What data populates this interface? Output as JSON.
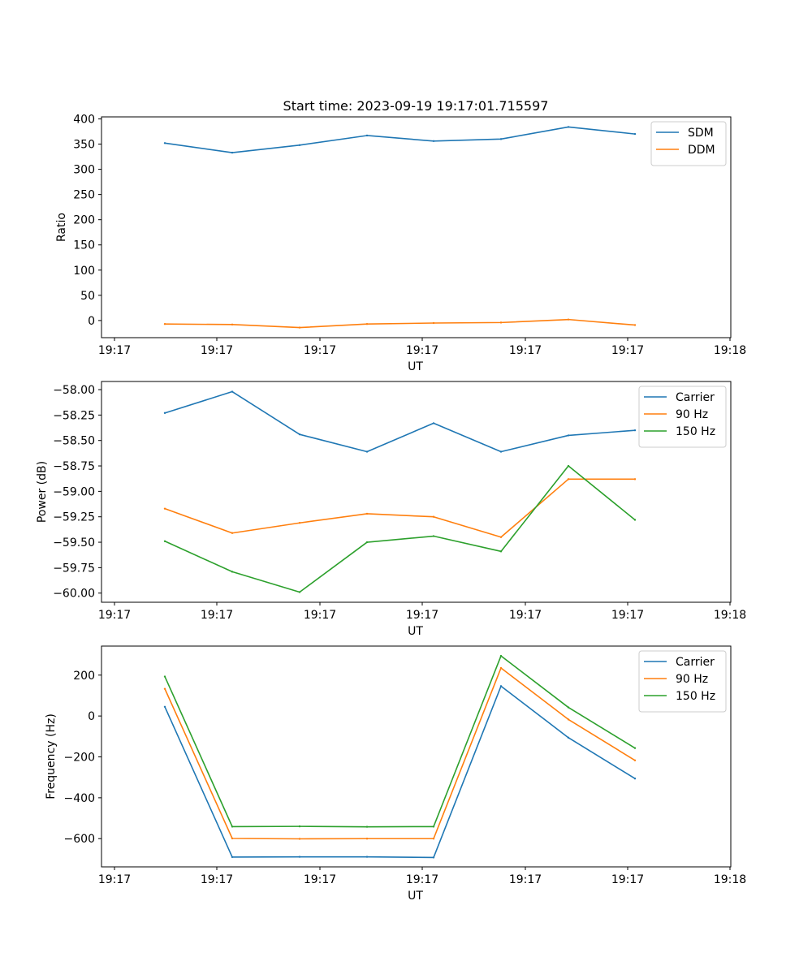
{
  "title": "Start time: 2023-09-19 19:17:01.715597",
  "colors": {
    "blue": "#1f77b4",
    "orange": "#ff7f0e",
    "green": "#2ca02c"
  },
  "chart_data": [
    {
      "type": "line",
      "xlabel": "UT",
      "ylabel": "Ratio",
      "xticks": [
        "19:17",
        "19:17",
        "19:17",
        "19:17",
        "19:17",
        "19:17",
        "19:18"
      ],
      "ylim": [
        -34,
        404
      ],
      "yticks": [
        0,
        50,
        100,
        150,
        200,
        250,
        300,
        350,
        400
      ],
      "ytick_labels": [
        "0",
        "50",
        "100",
        "150",
        "200",
        "250",
        "300",
        "350",
        "400"
      ],
      "legend_loc": "upper right",
      "series": [
        {
          "name": "SDM",
          "color": "#1f77b4",
          "values": [
            352,
            333,
            348,
            367,
            356,
            360,
            384,
            370
          ]
        },
        {
          "name": "DDM",
          "color": "#ff7f0e",
          "values": [
            -7,
            -8,
            -14,
            -7,
            -5,
            -4,
            2,
            -9
          ]
        }
      ]
    },
    {
      "type": "line",
      "xlabel": "UT",
      "ylabel": "Power (dB)",
      "xticks": [
        "19:17",
        "19:17",
        "19:17",
        "19:17",
        "19:17",
        "19:17",
        "19:18"
      ],
      "ylim": [
        -60.09,
        -57.92
      ],
      "yticks": [
        -60.0,
        -59.75,
        -59.5,
        -59.25,
        -59.0,
        -58.75,
        -58.5,
        -58.25,
        -58.0
      ],
      "ytick_labels": [
        "−60.00",
        "−59.75",
        "−59.50",
        "−59.25",
        "−59.00",
        "−58.75",
        "−58.50",
        "−58.25",
        "−58.00"
      ],
      "legend_loc": "upper right",
      "series": [
        {
          "name": "Carrier",
          "color": "#1f77b4",
          "values": [
            -58.23,
            -58.02,
            -58.44,
            -58.61,
            -58.33,
            -58.61,
            -58.45,
            -58.4
          ]
        },
        {
          "name": "90 Hz",
          "color": "#ff7f0e",
          "values": [
            -59.17,
            -59.41,
            -59.31,
            -59.22,
            -59.25,
            -59.45,
            -58.88,
            -58.88
          ]
        },
        {
          "name": "150 Hz",
          "color": "#2ca02c",
          "values": [
            -59.49,
            -59.79,
            -59.99,
            -59.5,
            -59.44,
            -59.59,
            -58.75,
            -59.28
          ]
        }
      ]
    },
    {
      "type": "line",
      "xlabel": "UT",
      "ylabel": "Frequency (Hz)",
      "xticks": [
        "19:17",
        "19:17",
        "19:17",
        "19:17",
        "19:17",
        "19:17",
        "19:18"
      ],
      "ylim": [
        -738,
        342
      ],
      "yticks": [
        -600,
        -400,
        -200,
        0,
        200
      ],
      "ytick_labels": [
        "−600",
        "−400",
        "−200",
        "0",
        "200"
      ],
      "legend_loc": "upper right",
      "series": [
        {
          "name": "Carrier",
          "color": "#1f77b4",
          "values": [
            45,
            -690,
            -689,
            -689,
            -692,
            146,
            -106,
            -306
          ]
        },
        {
          "name": "90 Hz",
          "color": "#ff7f0e",
          "values": [
            133,
            -599,
            -601,
            -600,
            -600,
            235,
            -17,
            -217
          ]
        },
        {
          "name": "150 Hz",
          "color": "#2ca02c",
          "values": [
            193,
            -541,
            -540,
            -542,
            -541,
            294,
            42,
            -157
          ]
        }
      ]
    }
  ]
}
